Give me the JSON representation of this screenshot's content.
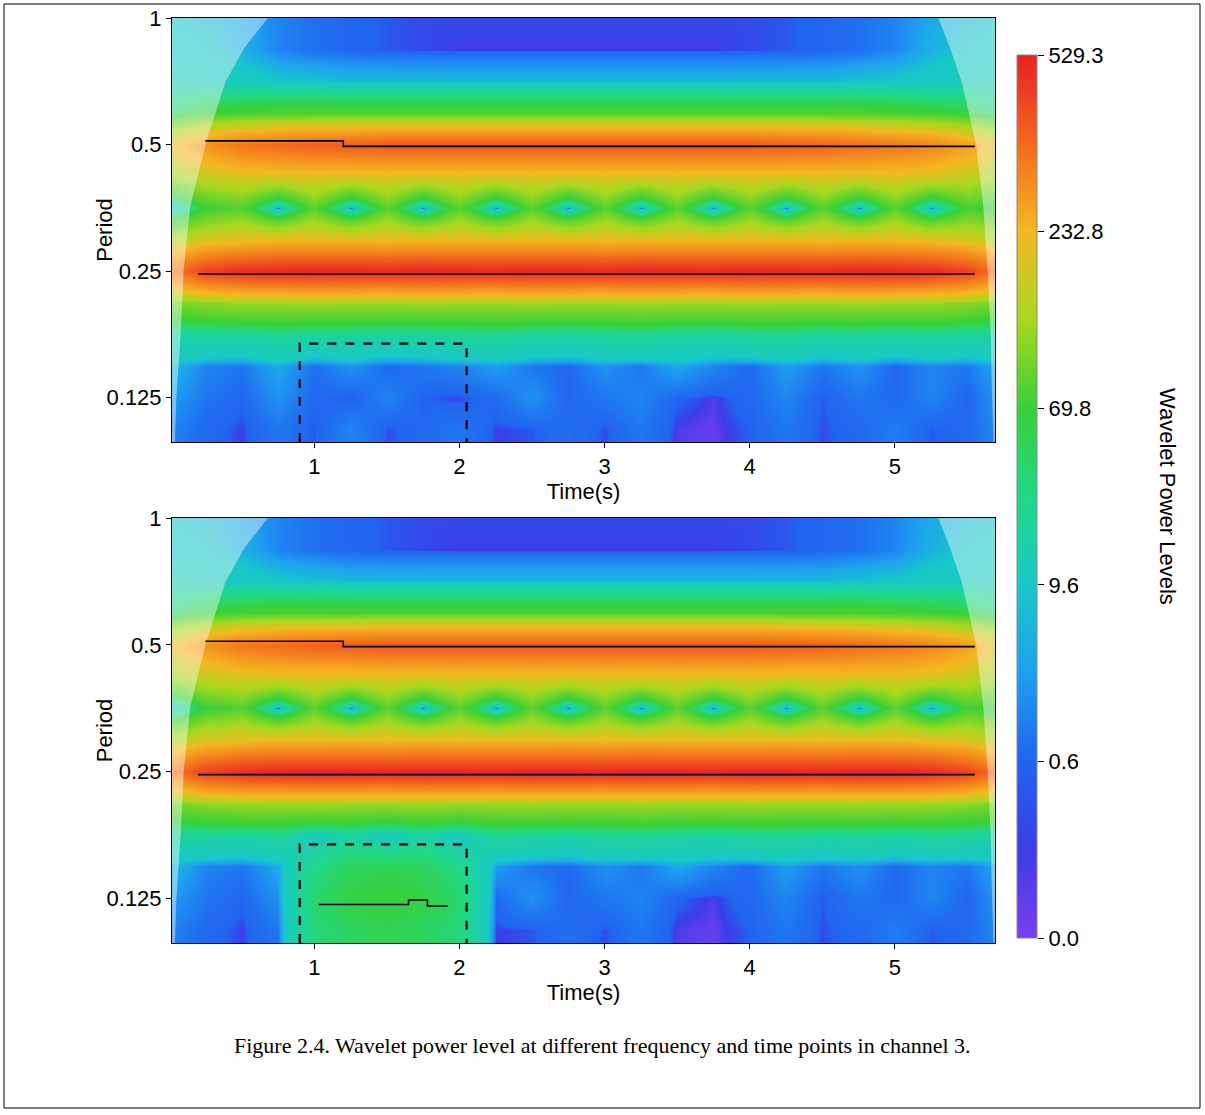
{
  "chart_data": [
    {
      "type": "heatmap",
      "x_label": "Time(s)",
      "y_label": "Period",
      "log": "y",
      "xlim": [
        0.02,
        5.69
      ],
      "ylim": [
        0.098,
        1
      ],
      "xticks": [
        1,
        2,
        3,
        4,
        5
      ],
      "yticks": [
        0.125,
        0.25,
        0.5,
        1
      ],
      "x": [
        0,
        0.25,
        0.5,
        0.75,
        1,
        1.25,
        1.5,
        1.75,
        2,
        2.25,
        2.5,
        2.75,
        3,
        3.25,
        3.5,
        3.75,
        4,
        4.25,
        4.5,
        4.75,
        5,
        5.25,
        5.5,
        5.75
      ],
      "y": [
        0.105,
        0.125,
        0.149,
        0.177,
        0.21,
        0.25,
        0.297,
        0.354,
        0.42,
        0.5,
        0.595,
        0.707,
        0.841,
        1
      ],
      "z": [
        [
          3,
          1,
          0.3,
          2,
          0.5,
          3,
          0.4,
          1,
          2,
          0.3,
          0.5,
          1.5,
          0.4,
          2,
          0.2,
          0.1,
          0.6,
          2,
          0.4,
          1,
          2.5,
          0.5,
          1,
          4
        ],
        [
          5,
          2,
          0.8,
          4,
          1,
          0.5,
          3,
          0.6,
          0.3,
          1.2,
          4,
          0.8,
          2,
          3,
          0.7,
          0.2,
          1,
          3,
          0.5,
          2,
          1,
          3,
          0.8,
          5
        ],
        [
          8,
          3,
          2,
          6,
          1.5,
          4,
          1,
          2,
          3,
          5,
          2,
          1,
          4,
          2,
          6,
          3,
          1,
          5,
          2,
          4,
          1,
          3,
          2,
          7
        ],
        [
          25,
          30,
          28,
          35,
          30,
          32,
          28,
          30,
          33,
          35,
          30,
          28,
          32,
          35,
          30,
          28,
          33,
          35,
          30,
          32,
          28,
          33,
          30,
          25
        ],
        [
          110,
          130,
          140,
          140,
          145,
          140,
          140,
          145,
          140,
          140,
          145,
          140,
          140,
          145,
          140,
          140,
          145,
          140,
          140,
          145,
          140,
          140,
          130,
          110
        ],
        [
          350,
          460,
          500,
          510,
          520,
          515,
          510,
          520,
          515,
          510,
          520,
          515,
          510,
          520,
          515,
          510,
          520,
          515,
          510,
          520,
          515,
          500,
          460,
          350
        ],
        [
          160,
          200,
          220,
          230,
          225,
          230,
          225,
          230,
          225,
          230,
          225,
          230,
          225,
          230,
          225,
          230,
          225,
          230,
          225,
          230,
          225,
          220,
          200,
          160
        ],
        [
          3,
          70,
          90,
          1,
          95,
          1,
          95,
          1,
          95,
          1,
          95,
          1,
          95,
          1,
          95,
          1,
          95,
          1,
          95,
          1,
          95,
          2,
          80,
          60
        ],
        [
          140,
          180,
          200,
          205,
          210,
          205,
          210,
          205,
          210,
          205,
          210,
          205,
          210,
          205,
          210,
          205,
          210,
          205,
          210,
          205,
          210,
          200,
          180,
          140
        ],
        [
          220,
          300,
          360,
          380,
          400,
          410,
          420,
          420,
          420,
          420,
          420,
          420,
          420,
          420,
          420,
          420,
          420,
          410,
          400,
          380,
          360,
          330,
          280,
          200
        ],
        [
          50,
          70,
          80,
          85,
          85,
          85,
          85,
          85,
          85,
          85,
          85,
          85,
          85,
          85,
          85,
          85,
          85,
          85,
          85,
          85,
          80,
          75,
          65,
          45
        ],
        [
          15,
          14,
          12,
          10,
          9,
          8,
          8,
          8,
          8,
          8,
          8,
          8,
          8,
          8,
          8,
          8,
          8,
          8,
          8,
          9,
          10,
          12,
          14,
          15
        ],
        [
          12,
          10,
          7,
          3,
          1.5,
          0.8,
          0.5,
          0.4,
          0.3,
          0.3,
          0.3,
          0.3,
          0.3,
          0.3,
          0.3,
          0.3,
          0.4,
          0.5,
          0.8,
          1.5,
          3,
          7,
          10,
          12
        ],
        [
          9,
          8,
          6,
          3,
          1.5,
          0.8,
          0.5,
          0.4,
          0.4,
          0.4,
          0.4,
          0.4,
          0.4,
          0.4,
          0.4,
          0.4,
          0.4,
          0.5,
          0.8,
          1.5,
          3,
          6,
          8,
          9
        ]
      ],
      "coi": {
        "period": [
          0.098,
          0.125,
          0.177,
          0.25,
          0.354,
          0.5,
          0.707,
          0.85,
          1
        ],
        "left": [
          0.04,
          0.05,
          0.08,
          0.1,
          0.145,
          0.25,
          0.39,
          0.52,
          0.68
        ],
        "right": [
          5.68,
          5.67,
          5.66,
          5.64,
          5.61,
          5.56,
          5.46,
          5.38,
          5.3
        ]
      },
      "ridges": [
        {
          "time": [
            0.25,
            1.2,
            1.2,
            5.55
          ],
          "period": [
            0.51,
            0.51,
            0.495,
            0.495
          ]
        },
        {
          "time": [
            0.2,
            5.55
          ],
          "period": [
            0.246,
            0.246
          ]
        }
      ],
      "box": {
        "time": [
          0.9,
          2.05
        ],
        "period": [
          0.098,
          0.168
        ],
        "line_style": "dash"
      }
    },
    {
      "type": "heatmap",
      "x_label": "Time(s)",
      "y_label": "Period",
      "log": "y",
      "xlim": [
        0.02,
        5.69
      ],
      "ylim": [
        0.098,
        1
      ],
      "xticks": [
        1,
        2,
        3,
        4,
        5
      ],
      "yticks": [
        0.125,
        0.25,
        0.5,
        1
      ],
      "x": [
        0,
        0.25,
        0.5,
        0.75,
        1,
        1.25,
        1.5,
        1.75,
        2,
        2.25,
        2.5,
        2.75,
        3,
        3.25,
        3.5,
        3.75,
        4,
        4.25,
        4.5,
        4.75,
        5,
        5.25,
        5.5,
        5.75
      ],
      "y": [
        0.105,
        0.125,
        0.149,
        0.177,
        0.21,
        0.25,
        0.297,
        0.354,
        0.42,
        0.5,
        0.595,
        0.707,
        0.841,
        1
      ],
      "z": [
        [
          3,
          1,
          0.3,
          2,
          45,
          55,
          60,
          55,
          45,
          0.3,
          0.5,
          1.5,
          0.4,
          2,
          0.2,
          0.1,
          0.6,
          2,
          0.4,
          1,
          2.5,
          0.5,
          1,
          4
        ],
        [
          5,
          2,
          0.8,
          4,
          50,
          65,
          70,
          65,
          50,
          1.2,
          4,
          0.8,
          2,
          3,
          0.7,
          0.2,
          1,
          3,
          0.5,
          2,
          1,
          3,
          0.8,
          5
        ],
        [
          8,
          3,
          2,
          6,
          40,
          55,
          60,
          55,
          40,
          5,
          2,
          1,
          4,
          2,
          6,
          3,
          1,
          5,
          2,
          4,
          1,
          3,
          2,
          7
        ],
        [
          25,
          30,
          28,
          35,
          12,
          25,
          10,
          25,
          12,
          35,
          30,
          28,
          32,
          35,
          30,
          28,
          33,
          35,
          30,
          32,
          28,
          33,
          30,
          25
        ],
        [
          110,
          130,
          140,
          140,
          145,
          140,
          140,
          145,
          140,
          140,
          145,
          140,
          140,
          145,
          140,
          140,
          145,
          140,
          140,
          145,
          140,
          140,
          130,
          110
        ],
        [
          350,
          460,
          500,
          510,
          520,
          515,
          510,
          520,
          515,
          510,
          520,
          515,
          510,
          520,
          515,
          510,
          520,
          515,
          510,
          520,
          515,
          500,
          460,
          350
        ],
        [
          160,
          200,
          220,
          230,
          225,
          230,
          225,
          230,
          225,
          230,
          225,
          230,
          225,
          230,
          225,
          230,
          225,
          230,
          225,
          230,
          225,
          220,
          200,
          160
        ],
        [
          3,
          70,
          90,
          1,
          95,
          1,
          95,
          1,
          95,
          1,
          95,
          1,
          95,
          1,
          95,
          1,
          95,
          1,
          95,
          1,
          95,
          2,
          80,
          60
        ],
        [
          140,
          180,
          200,
          205,
          210,
          205,
          210,
          205,
          210,
          205,
          210,
          205,
          210,
          205,
          210,
          205,
          210,
          205,
          210,
          205,
          210,
          200,
          180,
          140
        ],
        [
          220,
          300,
          360,
          380,
          400,
          410,
          420,
          420,
          420,
          420,
          420,
          420,
          420,
          420,
          420,
          420,
          420,
          410,
          400,
          380,
          360,
          330,
          280,
          200
        ],
        [
          50,
          70,
          80,
          85,
          85,
          85,
          85,
          85,
          85,
          85,
          85,
          85,
          85,
          85,
          85,
          85,
          85,
          85,
          85,
          85,
          80,
          75,
          65,
          45
        ],
        [
          15,
          14,
          12,
          10,
          9,
          8,
          8,
          8,
          8,
          8,
          8,
          8,
          8,
          8,
          8,
          8,
          8,
          8,
          8,
          9,
          10,
          12,
          14,
          15
        ],
        [
          12,
          10,
          7,
          3,
          1.5,
          0.8,
          0.5,
          0.4,
          0.3,
          0.3,
          0.3,
          0.3,
          0.3,
          0.3,
          0.3,
          0.3,
          0.4,
          0.5,
          0.8,
          1.5,
          3,
          7,
          10,
          12
        ],
        [
          9,
          8,
          6,
          3,
          1.5,
          0.8,
          0.5,
          0.4,
          0.4,
          0.4,
          0.4,
          0.4,
          0.4,
          0.4,
          0.4,
          0.4,
          0.4,
          0.5,
          0.8,
          1.5,
          3,
          6,
          8,
          9
        ]
      ],
      "coi": {
        "period": [
          0.098,
          0.125,
          0.177,
          0.25,
          0.354,
          0.5,
          0.707,
          0.85,
          1
        ],
        "left": [
          0.04,
          0.05,
          0.08,
          0.1,
          0.145,
          0.25,
          0.39,
          0.52,
          0.68
        ],
        "right": [
          5.68,
          5.67,
          5.66,
          5.64,
          5.61,
          5.56,
          5.46,
          5.38,
          5.3
        ]
      },
      "ridges": [
        {
          "time": [
            0.25,
            1.2,
            1.2,
            5.55
          ],
          "period": [
            0.51,
            0.51,
            0.495,
            0.495
          ]
        },
        {
          "time": [
            0.2,
            5.55
          ],
          "period": [
            0.246,
            0.246
          ]
        },
        {
          "time": [
            1.03,
            1.65,
            1.65,
            1.78,
            1.78,
            1.92
          ],
          "period": [
            0.121,
            0.121,
            0.124,
            0.124,
            0.12,
            0.12
          ]
        }
      ],
      "box": {
        "time": [
          0.9,
          2.05
        ],
        "period": [
          0.098,
          0.168
        ],
        "line_style": "dash"
      }
    }
  ],
  "colorbar": {
    "title": "Wavelet Power Levels",
    "range": [
      0,
      529.3
    ],
    "ticks": [
      {
        "value": 0,
        "label": "0.0"
      },
      0.6,
      9.6,
      69.8,
      232.8,
      529.3
    ]
  },
  "caption": "Figure 2.4. Wavelet power level at different frequency and time points in channel 3."
}
